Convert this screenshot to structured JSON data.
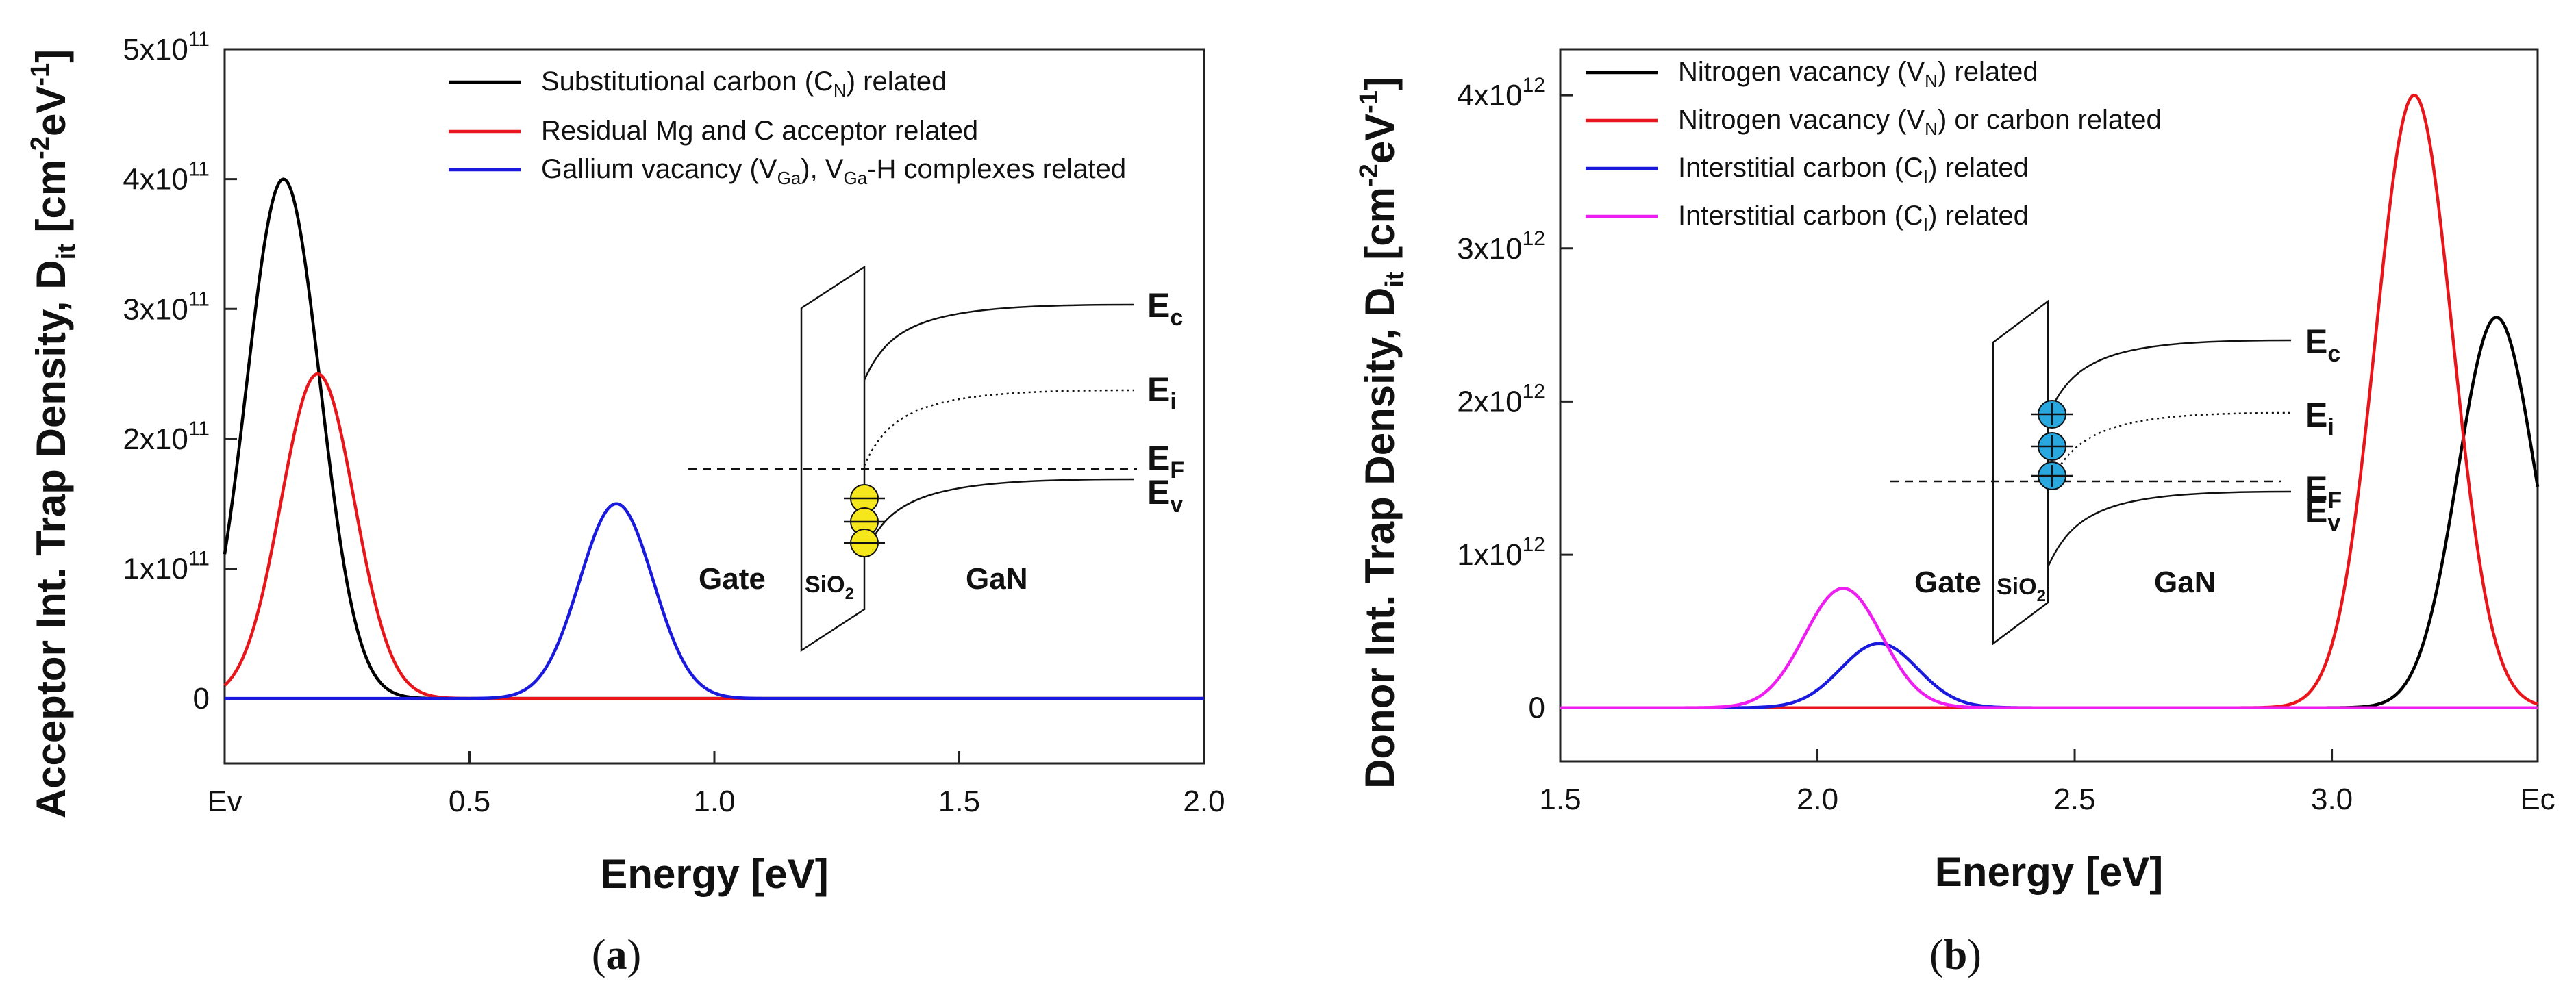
{
  "chart_data": [
    {
      "type": "line",
      "panel_label": "(a)",
      "xlabel": "Energy [eV]",
      "ylabel": "Acceptor Int. Trap Density, D",
      "ylabel_sub": "it",
      "ylabel_unit": " [cm",
      "ylabel_unit_sup": "-2",
      "ylabel_unit_mid": "eV",
      "ylabel_unit_sup2": "-1",
      "ylabel_unit_end": "]",
      "xlim": [
        0,
        2.0
      ],
      "ylim": [
        -0.5,
        5.0
      ],
      "y_multiplier_note": "values in units of 1e11",
      "x_ticks": [
        {
          "value": 0,
          "label": "Ev"
        },
        {
          "value": 0.5,
          "label": "0.5"
        },
        {
          "value": 1.0,
          "label": "1.0"
        },
        {
          "value": 1.5,
          "label": "1.5"
        },
        {
          "value": 2.0,
          "label": "2.0"
        }
      ],
      "y_ticks": [
        {
          "value": 0,
          "label": "0",
          "exp": ""
        },
        {
          "value": 1,
          "label": "1x10",
          "exp": "11"
        },
        {
          "value": 2,
          "label": "2x10",
          "exp": "11"
        },
        {
          "value": 3,
          "label": "3x10",
          "exp": "11"
        },
        {
          "value": 4,
          "label": "4x10",
          "exp": "11"
        },
        {
          "value": 5,
          "label": "5x10",
          "exp": "11"
        }
      ],
      "series": [
        {
          "name": "Substitutional carbon (C_N) related",
          "legend_pre": "Substitutional carbon (C",
          "legend_sub": "N",
          "legend_post": ") related",
          "color": "#000000",
          "peak_x": 0.12,
          "peak_y": 4.0,
          "sigma": 0.075
        },
        {
          "name": "Residual Mg and C acceptor related",
          "legend_pre": "Residual Mg and C acceptor related",
          "legend_sub": "",
          "legend_post": "",
          "color": "#e8161b",
          "peak_x": 0.19,
          "peak_y": 2.5,
          "sigma": 0.075
        },
        {
          "name": "Gallium vacancy (V_Ga), V_Ga-H complexes related",
          "legend_pre": "Gallium vacancy (V",
          "legend_sub": "Ga",
          "legend_post": "), V",
          "legend_sub2": "Ga",
          "legend_post2": "-H complexes related",
          "color": "#1a1adf",
          "peak_x": 0.8,
          "peak_y": 1.5,
          "sigma": 0.075
        }
      ],
      "inset": {
        "labels": {
          "gate": "Gate",
          "oxide": "SiO",
          "oxide_sub": "2",
          "semi": "GaN"
        },
        "bands": [
          {
            "name": "E",
            "sub": "c"
          },
          {
            "name": "E",
            "sub": "i"
          },
          {
            "name": "E",
            "sub": "F"
          },
          {
            "name": "E",
            "sub": "v"
          }
        ],
        "trap_color": "#f6e61c"
      }
    },
    {
      "type": "line",
      "panel_label": "(b)",
      "xlabel": "Energy [eV]",
      "ylabel": "Donor Int. Trap Density, D",
      "ylabel_sub": "it",
      "ylabel_unit": " [cm",
      "ylabel_unit_sup": "-2",
      "ylabel_unit_mid": "eV",
      "ylabel_unit_sup2": "-1",
      "ylabel_unit_end": "]",
      "xlim": [
        1.5,
        3.4
      ],
      "ylim": [
        -0.35,
        4.3
      ],
      "y_multiplier_note": "values in units of 1e12",
      "x_ticks": [
        {
          "value": 1.5,
          "label": "1.5"
        },
        {
          "value": 2.0,
          "label": "2.0"
        },
        {
          "value": 2.5,
          "label": "2.5"
        },
        {
          "value": 3.0,
          "label": "3.0"
        },
        {
          "value": 3.4,
          "label": "Ec"
        }
      ],
      "y_ticks": [
        {
          "value": 0,
          "label": "0",
          "exp": ""
        },
        {
          "value": 1,
          "label": "1x10",
          "exp": "12"
        },
        {
          "value": 2,
          "label": "2x10",
          "exp": "12"
        },
        {
          "value": 3,
          "label": "3x10",
          "exp": "12"
        },
        {
          "value": 4,
          "label": "4x10",
          "exp": "12"
        }
      ],
      "series": [
        {
          "name": "Nitrogen vacancy (V_N) related",
          "legend_pre": "Nitrogen vacancy (V",
          "legend_sub": "N",
          "legend_post": ") related",
          "color": "#000000",
          "peak_x": 3.32,
          "peak_y": 2.55,
          "sigma": 0.075
        },
        {
          "name": "Nitrogen vacancy (V_N) or carbon related",
          "legend_pre": "Nitrogen vacancy (V",
          "legend_sub": "N",
          "legend_post": ") or carbon related",
          "color": "#e8161b",
          "peak_x": 3.16,
          "peak_y": 4.0,
          "sigma": 0.075
        },
        {
          "name": "Interstitial carbon (C_I) related",
          "legend_pre": "Interstitial carbon (C",
          "legend_sub": "I",
          "legend_post": ") related",
          "color": "#1a1adf",
          "peak_x": 2.12,
          "peak_y": 0.42,
          "sigma": 0.075
        },
        {
          "name": "Interstitial carbon (C_I) related",
          "legend_pre": "Interstitial carbon (C",
          "legend_sub": "I",
          "legend_post": ") related",
          "color": "#ee1ef0",
          "peak_x": 2.05,
          "peak_y": 0.78,
          "sigma": 0.075
        }
      ],
      "inset": {
        "labels": {
          "gate": "Gate",
          "oxide": "SiO",
          "oxide_sub": "2",
          "semi": "GaN"
        },
        "bands": [
          {
            "name": "E",
            "sub": "c"
          },
          {
            "name": "E",
            "sub": "i"
          },
          {
            "name": "E",
            "sub": "F"
          },
          {
            "name": "E",
            "sub": "v"
          }
        ],
        "trap_color": "#29a8e0"
      }
    }
  ]
}
